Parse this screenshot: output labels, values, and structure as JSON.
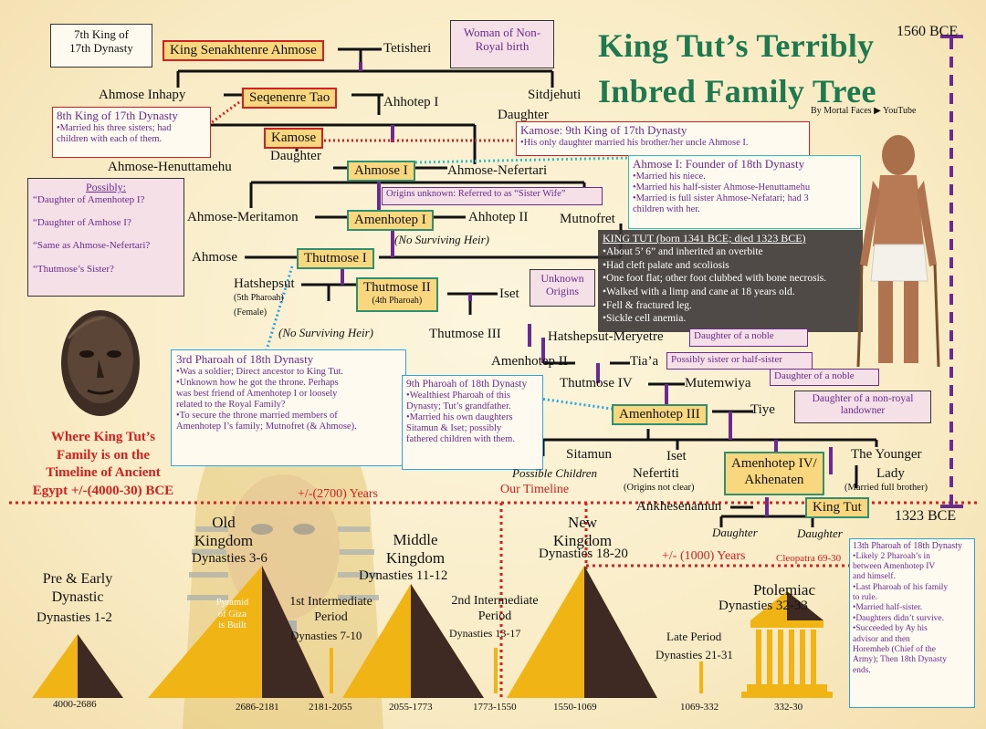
{
  "title": {
    "line1": "King Tut’s Terribly",
    "line2": "Inbred Family Tree",
    "byline": "By Mortal Faces ▶ YouTube"
  },
  "years": {
    "top": "1560 BCE",
    "bottom": "1323 BCE"
  },
  "names": {
    "senakhtenre": "King Senakhtenre Ahmose",
    "tetisheri": "Tetisheri",
    "ahmose_inhapy": "Ahmose Inhapy",
    "seqenenre": "Seqenenre Tao",
    "ahhotep1": "Ahhotep I",
    "sitdjehuti": "Sitdjehuti",
    "daughter1": "Daughter",
    "kamose": "Kamose",
    "daughter2": "Daughter",
    "ahmose_henuttamehu": "Ahmose-Henuttamehu",
    "ahmose1": "Ahmose I",
    "ahmose_nefertari": "Ahmose-Nefertari",
    "ahmose_meritamon": "Ahmose-Meritamon",
    "amenhotep1": "Amenhotep I",
    "ahhotep2": "Ahhotep II",
    "mutnofret": "Mutnofret",
    "no_heir1": "(No Surviving Heir)",
    "ahmose": "Ahmose",
    "thutmose1": "Thutmose I",
    "hatshepsut": "Hatshepsut",
    "hatshepsut_sub1": "(5th Pharoah)",
    "hatshepsut_sub2": "(Female)",
    "thutmose2": "Thutmose II",
    "thutmose2_sub": "(4th Pharoah)",
    "iset1": "Iset",
    "no_heir2": "(No Surviving Heir)",
    "thutmose3": "Thutmose III",
    "hatshepsut_meryetre": "Hatshepsut-Meryetre",
    "amenhotep2": "Amenhotep II",
    "tiaa": "Tia’a",
    "thutmose4": "Thutmose IV",
    "mutemwiya": "Mutemwiya",
    "amenhotep3": "Amenhotep III",
    "tiye": "Tiye",
    "sitamun": "Sitamun",
    "possible_children": "Possible Children",
    "iset2": "Iset",
    "nefertiti": "Nefertiti",
    "nefertiti_sub": "(Origins not clear)",
    "akhenaten": "Amenhotep IV/\nAkhenaten",
    "the_younger": "The Younger",
    "lady": "Lady",
    "lady_sub": "(Married full brother)",
    "ankhesenamun": "Ankhesenamun",
    "king_tut": "King Tut",
    "daughter3": "Daughter",
    "daughter4": "Daughter"
  },
  "notes": {
    "seventh_king": "7th King of\n17th Dynasty",
    "woman_nonroyal": "Woman of Non-\nRoyal birth",
    "eighth_king_title": "8th King of 17th Dynasty",
    "eighth_king_body": "•Married his three sisters; had\nchildren with each of them.",
    "kamose_title": "Kamose: 9th King of 17th Dynasty",
    "kamose_body": "•His only daughter married his brother/her uncle Ahmose I.",
    "ahmose1_title": "Ahmose I: Founder of 18th Dynasty",
    "ahmose1_body": "•Married his niece.\n•Married his half-sister Ahmose-Henuttamehu\n•Married is full sister Ahmose-Nefatari; had 3\nchildren with her.",
    "origins_unknown": "Origins unknown: Referred to as “Sister Wife”",
    "possibly_title": "Possibly:",
    "possibly_body": "“Daughter of Amenhotep I?\n\n“Daughter of Amhose I?\n\n“Same as Ahmose-Nefertari?\n\n“Thutmose’s Sister?",
    "unknown_origins": "Unknown\nOrigins",
    "third_pharoah_title": "3rd Pharoah of 18th Dynasty",
    "third_pharoah_body": "•Was a soldier; Direct ancestor to King Tut.\n•Unknown how he got the throne. Perhaps\nwas best friend of Amenhotep I or loosely\nrelated to the Royal Family?\n•To secure the throne married members of\nAmenhotep I’s family; Mutnofret (& Ahmose).",
    "ninth_pharoah_title": "9th Pharoah of 18th Dynasty",
    "ninth_pharoah_body": "•Wealthiest Pharoah of this\nDynasty; Tut’s grandfather.\n•Married his own daughters\nSitamun & Iset; possibly\nfathered children with them.",
    "tut_title": "KING TUT (born 1341 BCE; died 1323 BCE)",
    "tut_body": "•About 5’ 6” and inherited an overbite\n•Had cleft palate and scoliosis\n•One foot flat; other foot clubbed with bone necrosis.\n•Walked with a limp and cane at 18 years old.\n•Fell & fractured leg.\n•Sickle cell anemia.",
    "daughter_noble1": "Daughter of a noble",
    "possibly_sister": "Possibly sister or half-sister",
    "daughter_noble2": "Daughter of a noble",
    "daughter_nonroyal": "Daughter of a non-royal\nlandowner",
    "thirteenth_title": "13th Pharoah of 18th Dynasty",
    "thirteenth_body": "•Likely 2 Pharoah’s in\nbetween Amenhotep IV\nand himself.\n•Last Pharoah of his family\nto rule.\n•Married half-sister.\n•Daughters didn’t survive.\n•Succeeded by Ay his\nadvisor and then\nHoremheb (Chief of the\nArmy); Then 18th Dynasty\nends."
  },
  "timeline": {
    "where": "Where King Tut’s\nFamily is on the\nTimeline of Ancient\nEgypt +/-(4000-30) BCE",
    "span_2700": "+/-(2700) Years",
    "our_timeline": "Our Timeline",
    "span_1000": "+/- (1000) Years",
    "cleopatra": "Cleopatra 69-30",
    "periods": [
      {
        "id": "pre",
        "name": "Pre & Early\nDynastic",
        "dyn": "Dynasties 1-2",
        "years": "4000-2686"
      },
      {
        "id": "old",
        "name": "Old\nKingdom",
        "dyn": "Dynasties 3-6",
        "years": "2686-2181",
        "extra": "Pyramid\nof Giza\nis Built"
      },
      {
        "id": "first",
        "name": "1st Intermediate\nPeriod",
        "dyn": "Dynasties 7-10",
        "years": "2181-2055"
      },
      {
        "id": "middle",
        "name": "Middle\nKingdom",
        "dyn": "Dynasties 11-12",
        "years": "2055-1773"
      },
      {
        "id": "second",
        "name": "2nd Intermediate\nPeriod",
        "dyn": "Dynasties 13-17",
        "years": "1773-1550"
      },
      {
        "id": "new",
        "name": "New\nKingdom",
        "dyn": "Dynasties 18-20",
        "years": "1550-1069"
      },
      {
        "id": "late",
        "name": "Late Period",
        "dyn": "Dynasties 21-31",
        "years": "1069-332"
      },
      {
        "id": "ptol",
        "name": "Ptolemiac",
        "dyn": "Dynasties 32-33",
        "years": "332-30"
      }
    ]
  },
  "colors": {
    "gold": "#f0b414",
    "dark": "#3e2a22",
    "purple": "#6a2a8f",
    "green": "#1e7a4e",
    "red": "#d32020"
  }
}
